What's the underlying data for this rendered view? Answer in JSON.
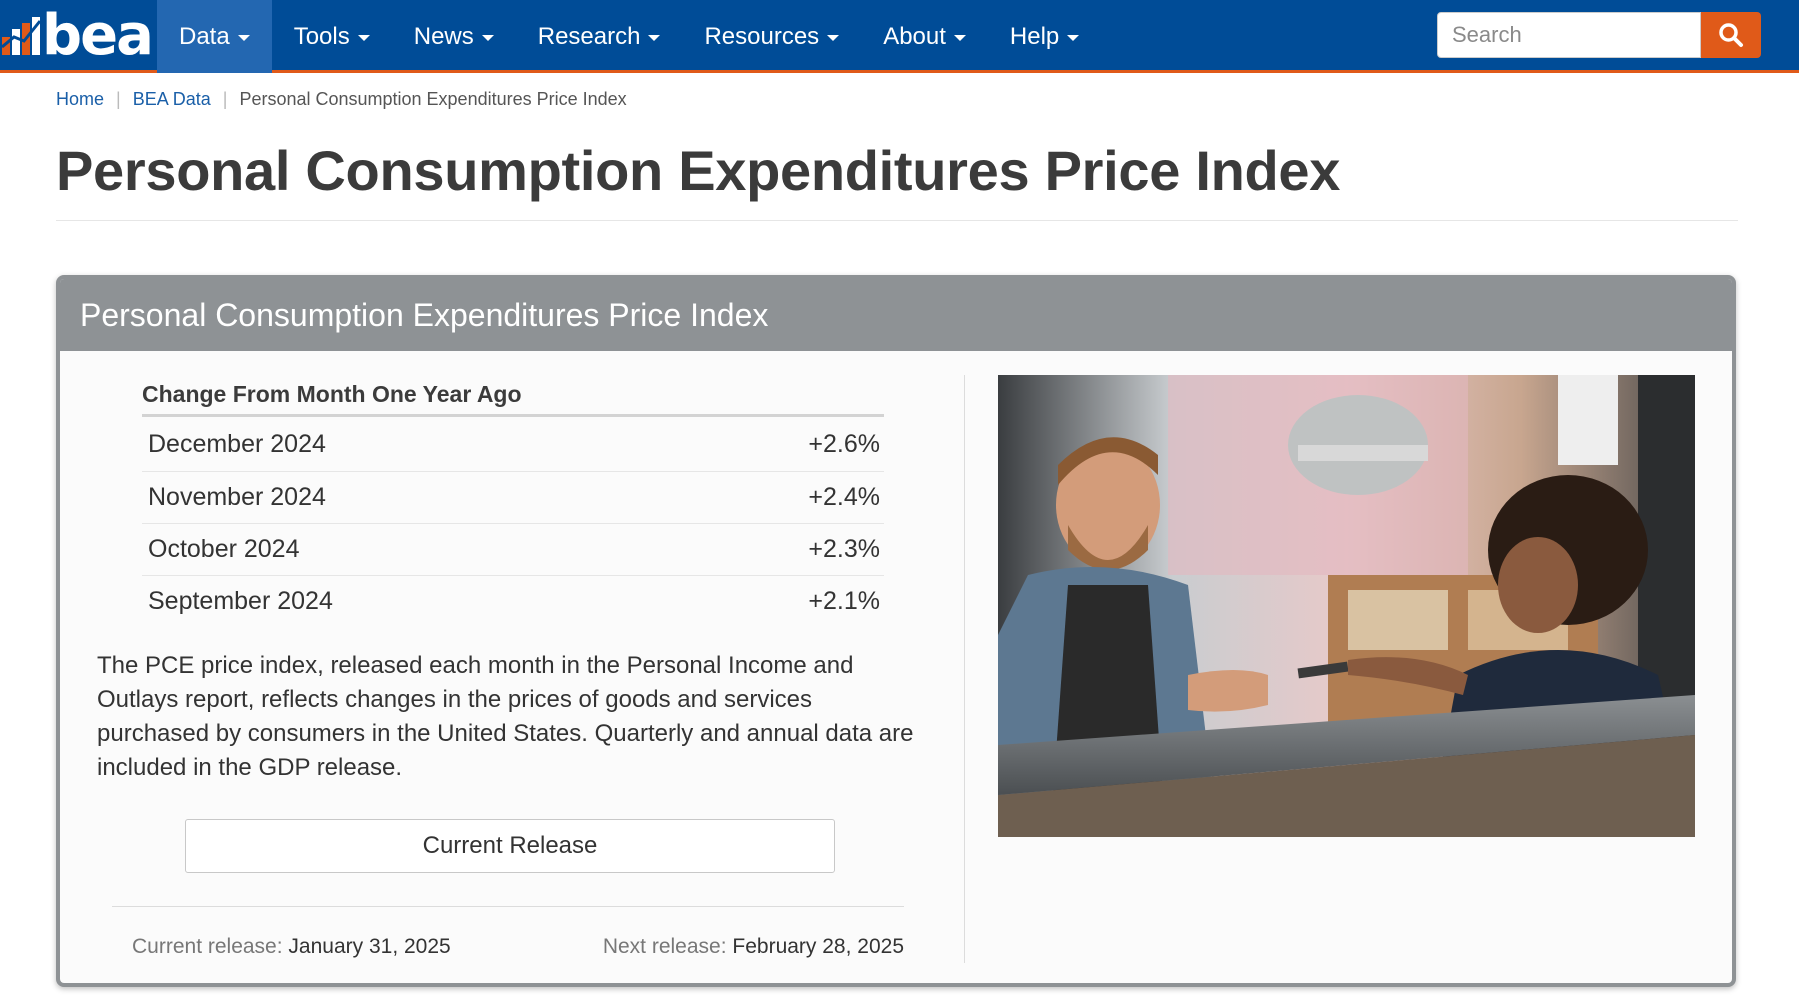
{
  "brand": {
    "logo_text": "bea",
    "accent": "#e05a19",
    "nav_bg": "#004c97"
  },
  "nav": {
    "items": [
      {
        "label": "Data",
        "active": true
      },
      {
        "label": "Tools"
      },
      {
        "label": "News"
      },
      {
        "label": "Research"
      },
      {
        "label": "Resources"
      },
      {
        "label": "About"
      },
      {
        "label": "Help"
      }
    ],
    "search_placeholder": "Search",
    "search_icon": "search-icon"
  },
  "breadcrumb": {
    "home": "Home",
    "section": "BEA Data",
    "current": "Personal Consumption Expenditures Price Index"
  },
  "page": {
    "title": "Personal Consumption Expenditures Price Index"
  },
  "panel": {
    "title": "Personal Consumption Expenditures Price Index",
    "table_heading": "Change From Month One Year Ago",
    "rows": [
      {
        "label": "December 2024",
        "value": "+2.6%"
      },
      {
        "label": "November 2024",
        "value": "+2.4%"
      },
      {
        "label": "October 2024",
        "value": "+2.3%"
      },
      {
        "label": "September 2024",
        "value": "+2.1%"
      }
    ],
    "description": "The PCE price index, released each month in the Personal Income and Outlays report, reflects changes in the prices of goods and services purchased by consumers in the United States. Quarterly and annual data are included in the GDP release.",
    "button_label": "Current Release",
    "current_release_label": "Current release:",
    "current_release_date": "January 31, 2025",
    "next_release_label": "Next release:",
    "next_release_date": "February 28, 2025"
  }
}
